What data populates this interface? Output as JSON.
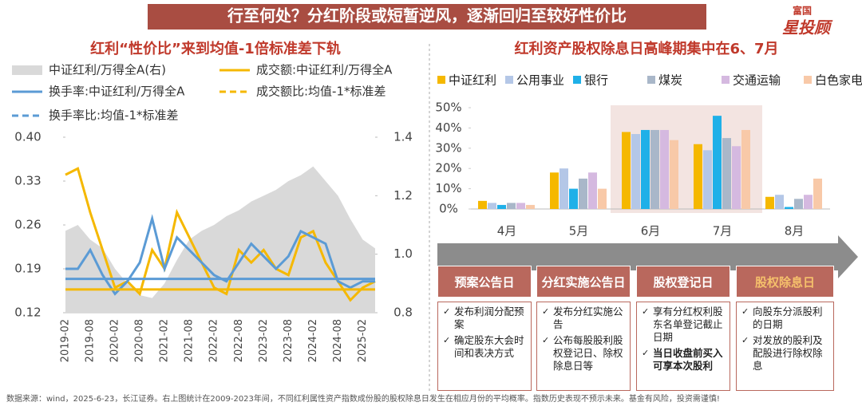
{
  "header": {
    "title": "行至何处？分红阶段或短暂逆风，逐渐回归至较好性价比",
    "logo_top": "富国",
    "logo_main": "星投顾"
  },
  "chart_data": [
    {
      "type": "line",
      "title": "红利“性价比”来到均值-1倍标准差下轨",
      "categories": [
        "2019-02",
        null,
        "2019-08",
        null,
        "2020-02",
        null,
        "2020-08",
        null,
        "2021-02",
        null,
        "2021-08",
        null,
        "2022-02",
        null,
        "2022-08",
        null,
        "2023-02",
        null,
        "2023-08",
        null,
        "2024-02",
        null,
        "2024-08",
        null,
        "2025-02",
        null
      ],
      "series": [
        {
          "name": "中证红利/万得全A(右)",
          "color": "#d9d9d9",
          "axis": "y2",
          "values": [
            1.08,
            1.1,
            1.05,
            1.02,
            0.95,
            0.9,
            0.86,
            0.85,
            0.9,
            0.98,
            1.05,
            1.08,
            1.1,
            1.13,
            1.15,
            1.18,
            1.2,
            1.22,
            1.25,
            1.27,
            1.3,
            1.25,
            1.2,
            1.12,
            1.05,
            1.02
          ]
        },
        {
          "name": "成交额:中证红利/万得全A",
          "color": "#f5b800",
          "values": [
            0.34,
            0.35,
            0.28,
            0.22,
            0.16,
            0.17,
            0.15,
            0.22,
            0.19,
            0.28,
            0.24,
            0.2,
            0.16,
            0.15,
            0.22,
            0.2,
            0.22,
            0.19,
            0.18,
            0.24,
            0.25,
            0.2,
            0.17,
            0.14,
            0.16,
            0.17
          ]
        },
        {
          "name": "换手率:中证红利/万得全A",
          "color": "#5b9bd5",
          "values": [
            0.19,
            0.19,
            0.22,
            0.18,
            0.15,
            0.17,
            0.2,
            0.27,
            0.19,
            0.24,
            0.22,
            0.2,
            0.18,
            0.17,
            0.2,
            0.23,
            0.21,
            0.19,
            0.21,
            0.25,
            0.24,
            0.23,
            0.17,
            0.16,
            0.17,
            0.17
          ]
        }
      ],
      "ref_lines": [
        {
          "name": "成交额比:均值-1*标准差",
          "color": "#f5b800",
          "value": 0.157
        },
        {
          "name": "换手率比:均值-1*标准差",
          "color": "#5b9bd5",
          "value": 0.174
        }
      ],
      "ylim": [
        0.12,
        0.4
      ],
      "yticks": [
        {
          "value": 0.4,
          "label": "0.40"
        },
        0.33,
        0.26,
        0.19,
        0.12
      ],
      "y2lim": [
        0.8,
        1.4
      ],
      "y2ticks": [
        1.4,
        1.2,
        {
          "value": 1.0,
          "label": "1.0"
        },
        0.8
      ]
    },
    {
      "type": "bar",
      "title": "红利资产股权除息日高峰期集中在6、7月",
      "categories": [
        "4月",
        "5月",
        "6月",
        "7月",
        "8月"
      ],
      "series": [
        {
          "name": "中证红利",
          "color": "#f5b800",
          "values": [
            4,
            18,
            38,
            32,
            6
          ]
        },
        {
          "name": "公用事业",
          "color": "#b4c7e7",
          "values": [
            3,
            20,
            37,
            29,
            7
          ]
        },
        {
          "name": "银行",
          "color": "#1fb0e8",
          "values": [
            2,
            10,
            39,
            46,
            1
          ]
        },
        {
          "name": "煤炭",
          "color": "#a9b7c9",
          "values": [
            3,
            15,
            39,
            35,
            5
          ]
        },
        {
          "name": "交通运输",
          "color": "#d5b9e0",
          "values": [
            3,
            18,
            39,
            31,
            7
          ]
        },
        {
          "name": "白色家电",
          "color": "#f8c9a8",
          "values": [
            2,
            10,
            34,
            39,
            15
          ]
        }
      ],
      "ylim": [
        0,
        50
      ],
      "yticks": [
        {
          "value": 0,
          "label": "0%"
        },
        {
          "value": 10,
          "label": "10%"
        },
        {
          "value": 20,
          "label": "20%"
        },
        {
          "value": 30,
          "label": "30%"
        },
        {
          "value": 40,
          "label": "40%"
        },
        {
          "value": 50,
          "label": "50%"
        }
      ]
    }
  ],
  "process": {
    "steps": [
      {
        "title": "预案公告日",
        "items": [
          "发布利润分配预案",
          "确定股东大会时间和表决方式"
        ]
      },
      {
        "title": "分红实施公告日",
        "items": [
          "发布分红实施公告",
          "公布每股股利股权登记日、除权除息日等"
        ]
      },
      {
        "title": "股权登记日",
        "items": [
          "享有分红权利股东名单登记截止日期",
          "当日收盘前买入可享本次股利"
        ]
      },
      {
        "title": "股权除息日",
        "items": [
          "向股东分派股利的日期",
          "对发放的股利及配股进行除权除息"
        ]
      }
    ]
  },
  "footnote": "数据来源：wind，2025-6-23，长江证券。右上图统计在2009-2023年间，不同红利属性资产指数成份股的股权除息日发生在相应月份的平均概率。指数历史表现不预示未来。基金有风险，投资需谨慎!"
}
